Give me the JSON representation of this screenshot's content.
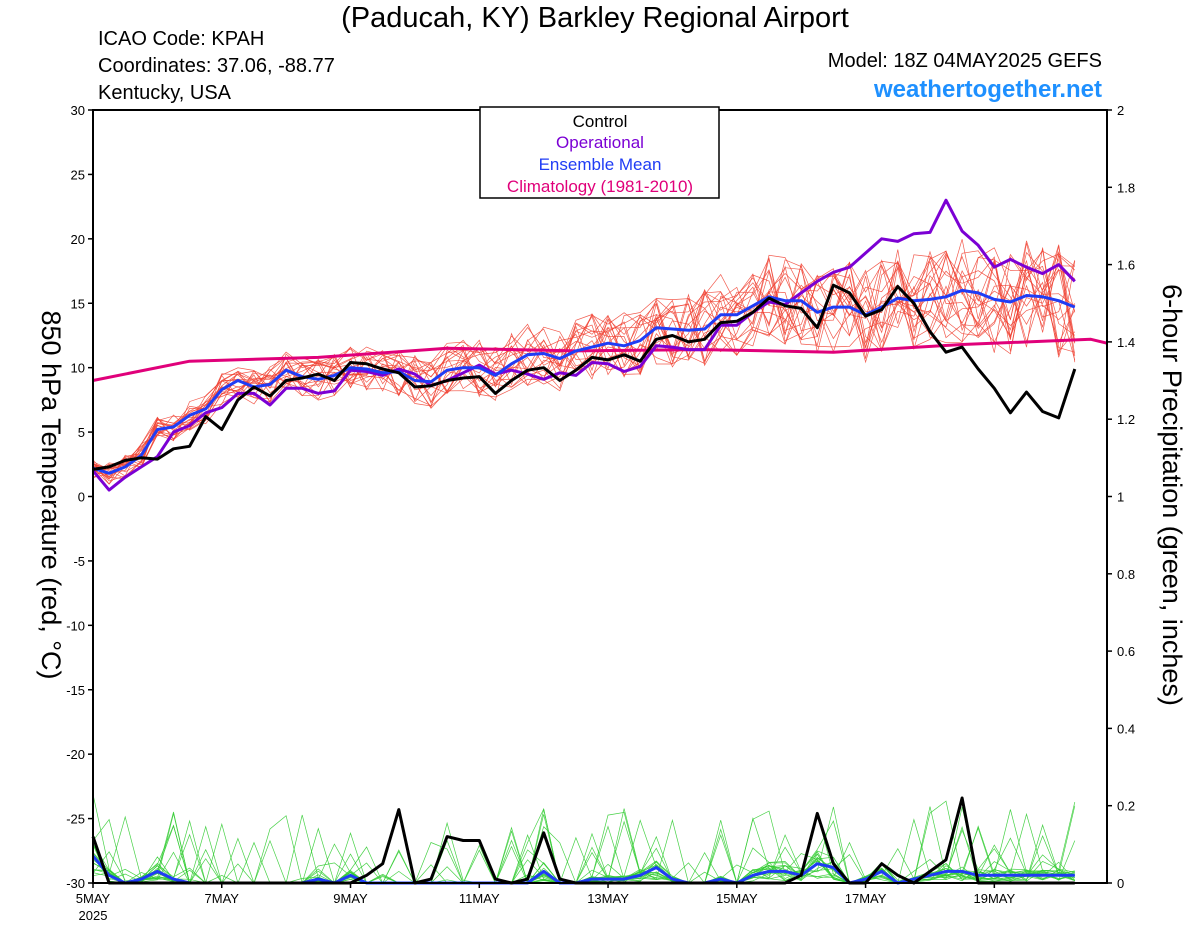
{
  "header": {
    "title": "(Paducah, KY) Barkley Regional Airport",
    "icao": "ICAO Code: KPAH",
    "coords": "Coordinates: 37.06, -88.77",
    "region": "Kentucky, USA",
    "model": "Model: 18Z 04MAY2025 GEFS",
    "site": "weathertogether.net"
  },
  "colors": {
    "control": "#000000",
    "operational": "#7b00d4",
    "ensemble_mean": "#1f3cf5",
    "climatology": "#e0007a",
    "members_temp": "#f04030",
    "members_precip": "#33cc33",
    "site": "#1e90ff"
  },
  "chart_data": {
    "type": "line",
    "title": "(Paducah, KY) Barkley Regional Airport",
    "xlabel": "",
    "ylabel": "850 hPa Temperature (red, °C)",
    "ylabel_right": "6-hour Precipitation (green, inches)",
    "x_tick_labels": [
      "5MAY",
      "7MAY",
      "9MAY",
      "11MAY",
      "13MAY",
      "15MAY",
      "17MAY",
      "19MAY"
    ],
    "x_tick_sublabel": "2025",
    "x_range_days": [
      0,
      15.75
    ],
    "ylim": [
      -30,
      30
    ],
    "y_ticks": [
      30,
      25,
      20,
      15,
      10,
      5,
      0,
      -5,
      -10,
      -15,
      -20,
      -25,
      -30
    ],
    "y2lim": [
      0,
      2
    ],
    "y2_ticks": [
      2,
      1.8,
      1.6,
      1.4,
      1.2,
      1,
      0.8,
      0.6,
      0.4,
      0.2,
      0
    ],
    "grid": true,
    "legend": {
      "position": "top-center",
      "entries": [
        "Control",
        "Operational",
        "Ensemble Mean",
        "Climatology (1981-2010)"
      ]
    },
    "temperature": {
      "control": [
        2.1,
        2.3,
        2.8,
        3.0,
        2.9,
        3.7,
        3.9,
        6.2,
        5.2,
        7.5,
        8.5,
        7.8,
        9.0,
        9.2,
        9.5,
        9.0,
        10.4,
        10.3,
        9.9,
        9.6,
        8.5,
        8.6,
        9.0,
        9.2,
        9.3,
        8.0,
        9.0,
        9.8,
        10.0,
        9.0,
        9.8,
        10.8,
        10.6,
        11.0,
        10.5,
        12.2,
        12.5,
        12.0,
        12.2,
        13.5,
        13.6,
        14.3,
        15.4,
        14.8,
        14.6,
        13.1,
        16.4,
        15.8,
        14.0,
        14.5,
        16.3,
        15.0,
        12.8,
        11.2,
        11.6,
        9.9,
        8.4,
        6.5,
        8.1,
        6.6,
        6.1,
        9.9
      ],
      "operational": [
        2.0,
        0.5,
        1.5,
        2.3,
        3.1,
        5.0,
        5.5,
        6.5,
        6.9,
        8.0,
        8.0,
        7.1,
        8.4,
        8.4,
        8.0,
        8.2,
        9.8,
        9.7,
        9.4,
        9.9,
        9.5,
        8.6,
        9.0,
        9.6,
        10.2,
        9.5,
        9.8,
        9.5,
        9.1,
        9.6,
        9.4,
        10.4,
        10.3,
        9.7,
        10.1,
        11.7,
        11.6,
        11.4,
        11.4,
        13.3,
        13.3,
        14.3,
        15.1,
        14.9,
        15.8,
        16.7,
        17.4,
        17.8,
        18.9,
        20.0,
        19.8,
        20.4,
        20.5,
        23.0,
        20.6,
        19.5,
        17.8,
        18.4,
        17.8,
        17.3,
        18.0,
        16.7
      ],
      "ensemble_mean": [
        2.2,
        1.8,
        2.3,
        3.2,
        5.2,
        5.4,
        6.3,
        6.8,
        8.3,
        9.0,
        8.5,
        8.7,
        9.8,
        9.3,
        9.1,
        9.4,
        10.0,
        9.9,
        9.6,
        9.7,
        9.0,
        8.9,
        9.8,
        10.0,
        10.0,
        9.4,
        10.3,
        11.0,
        11.1,
        10.7,
        11.3,
        11.6,
        11.9,
        11.7,
        12.1,
        13.1,
        13.0,
        12.9,
        13.0,
        14.1,
        14.1,
        14.8,
        15.5,
        15.2,
        15.2,
        14.3,
        14.7,
        14.7,
        14.1,
        14.7,
        15.4,
        15.2,
        15.3,
        15.5,
        16.0,
        15.8,
        15.3,
        15.1,
        15.6,
        15.5,
        15.2,
        14.7
      ],
      "climatology_x_days": [
        0,
        1.5,
        3.5,
        5.5,
        7.5,
        9.5,
        11.5,
        13.5,
        15.5,
        15.75
      ],
      "climatology": [
        9.0,
        10.5,
        10.8,
        11.5,
        11.3,
        11.4,
        11.2,
        11.8,
        12.2,
        11.9
      ],
      "step_days": 0.25,
      "members": "20 perturbed members (thin red lines)"
    },
    "precipitation": {
      "control": [
        0.12,
        0.0,
        0.0,
        0.0,
        0.0,
        0.0,
        0.0,
        0.0,
        0.0,
        0.0,
        0.0,
        0.0,
        0.0,
        0.0,
        0.0,
        0.0,
        0.0,
        0.02,
        0.05,
        0.19,
        0.0,
        0.01,
        0.12,
        0.11,
        0.11,
        0.01,
        0.0,
        0.01,
        0.13,
        0.01,
        0.0,
        0.0,
        0.0,
        0.0,
        0.0,
        0.0,
        0.0,
        0.0,
        0.0,
        0.0,
        0.0,
        0.0,
        0.0,
        0.0,
        0.02,
        0.18,
        0.05,
        0.0,
        0.0,
        0.05,
        0.02,
        0.0,
        0.03,
        0.06,
        0.22,
        0.0,
        0.0,
        0.0,
        0.0,
        0.0,
        0.0,
        0.0
      ],
      "ensemble_mean": [
        0.07,
        0.02,
        0.0,
        0.01,
        0.03,
        0.01,
        0.0,
        0.0,
        0.0,
        0.0,
        0.0,
        0.0,
        0.0,
        0.0,
        0.01,
        0.0,
        0.02,
        0.0,
        0.0,
        0.0,
        0.0,
        0.0,
        0.0,
        0.0,
        0.0,
        0.0,
        0.0,
        0.0,
        0.03,
        0.0,
        0.0,
        0.01,
        0.01,
        0.01,
        0.02,
        0.04,
        0.01,
        0.0,
        0.0,
        0.01,
        0.0,
        0.02,
        0.03,
        0.03,
        0.02,
        0.05,
        0.04,
        0.0,
        0.01,
        0.03,
        0.0,
        0.01,
        0.02,
        0.03,
        0.03,
        0.02,
        0.02,
        0.02,
        0.02,
        0.02,
        0.02,
        0.02
      ],
      "members": "20 perturbed members (thin green lines)"
    }
  }
}
